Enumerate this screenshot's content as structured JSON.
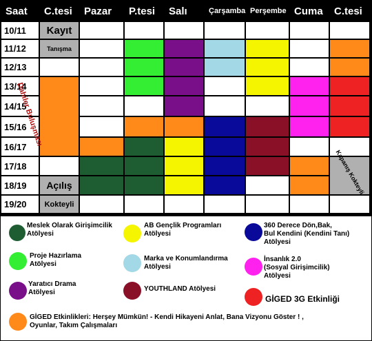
{
  "header": {
    "saat": "Saat",
    "days": [
      "C.tesi",
      "Pazar",
      "P.tesi",
      "Salı",
      "Çarşamba",
      "Perşembe",
      "Cuma",
      "C.tesi"
    ]
  },
  "times": [
    "10/11",
    "11/12",
    "12/13",
    "13/14",
    "14/15",
    "15/16",
    "16/17",
    "17/18",
    "18/19",
    "19/20"
  ],
  "colors": {
    "dark_green": "#1e5c32",
    "green": "#33ee33",
    "purple": "#7a0f8a",
    "light_blue": "#a3d8e6",
    "navy": "#0a0a9a",
    "yellow": "#f5f500",
    "dark_red": "#8a1028",
    "magenta": "#ff22ee",
    "red": "#ee2222",
    "orange": "#ff8a1a",
    "gray": "#b0b0b0",
    "white": "#ffffff",
    "black": "#000000"
  },
  "schedule": [
    [
      "gray",
      "white",
      "white",
      "white",
      "white",
      "white",
      "white",
      "white"
    ],
    [
      "gray",
      "white",
      "green",
      "purple",
      "light_blue",
      "yellow",
      "white",
      "orange"
    ],
    [
      "white",
      "white",
      "green",
      "purple",
      "light_blue",
      "yellow",
      "white",
      "orange"
    ],
    [
      "orange",
      "white",
      "green",
      "purple",
      "white",
      "yellow",
      "magenta",
      "red"
    ],
    [
      "orange",
      "white",
      "white",
      "purple",
      "white",
      "white",
      "magenta",
      "red"
    ],
    [
      "orange",
      "white",
      "orange",
      "orange",
      "navy",
      "dark_red",
      "magenta",
      "red"
    ],
    [
      "orange",
      "orange",
      "dark_green",
      "yellow",
      "navy",
      "dark_red",
      "white",
      "white"
    ],
    [
      "white",
      "dark_green",
      "dark_green",
      "yellow",
      "navy",
      "dark_red",
      "orange",
      "gray"
    ],
    [
      "gray",
      "dark_green",
      "dark_green",
      "yellow",
      "navy",
      "white",
      "orange",
      "gray"
    ],
    [
      "gray",
      "white",
      "white",
      "white",
      "white",
      "white",
      "white",
      "white"
    ]
  ],
  "saturday_labels": {
    "kayit": "Kayıt",
    "tanisma": "Tanışma",
    "dahili": "Dahiler Buluşması",
    "acilis": "Açılış",
    "kokteyli": "Kokteyli",
    "kapanis": "Kapanış Kokteyli"
  },
  "legend": [
    {
      "color": "dark_green",
      "text": "Meslek Olarak Girişimcilik\nAtölyesi"
    },
    {
      "color": "green",
      "text": "Proje Hazırlama\nAtölyesi"
    },
    {
      "color": "purple",
      "text": "Yaratıcı Drama\nAtölyesi"
    },
    {
      "color": "orange",
      "text": "GİGED Etkinlikleri: Herşey Mümkün! - Kendi Hikayeni Anlat, Bana Vizyonu Göster ! ,\nOyunlar, Takım Çalışmaları"
    },
    {
      "color": "yellow",
      "text": "AB Gençlik Programları\nAtölyesi"
    },
    {
      "color": "light_blue",
      "text": "Marka ve Konumlandırma\nAtölyesi"
    },
    {
      "color": "dark_red",
      "text": "YOUTHLAND Atölyesi"
    },
    {
      "color": "navy",
      "text": "360 Derece Dön,Bak,\nBul Kendini (Kendini Tanı)\nAtölyesi"
    },
    {
      "color": "magenta",
      "text": "İnsanlık 2.0\n(Sosyal Girişimcilik)\nAtölyesi"
    },
    {
      "color": "red",
      "text": "GİGED 3G Etkinliği"
    }
  ]
}
